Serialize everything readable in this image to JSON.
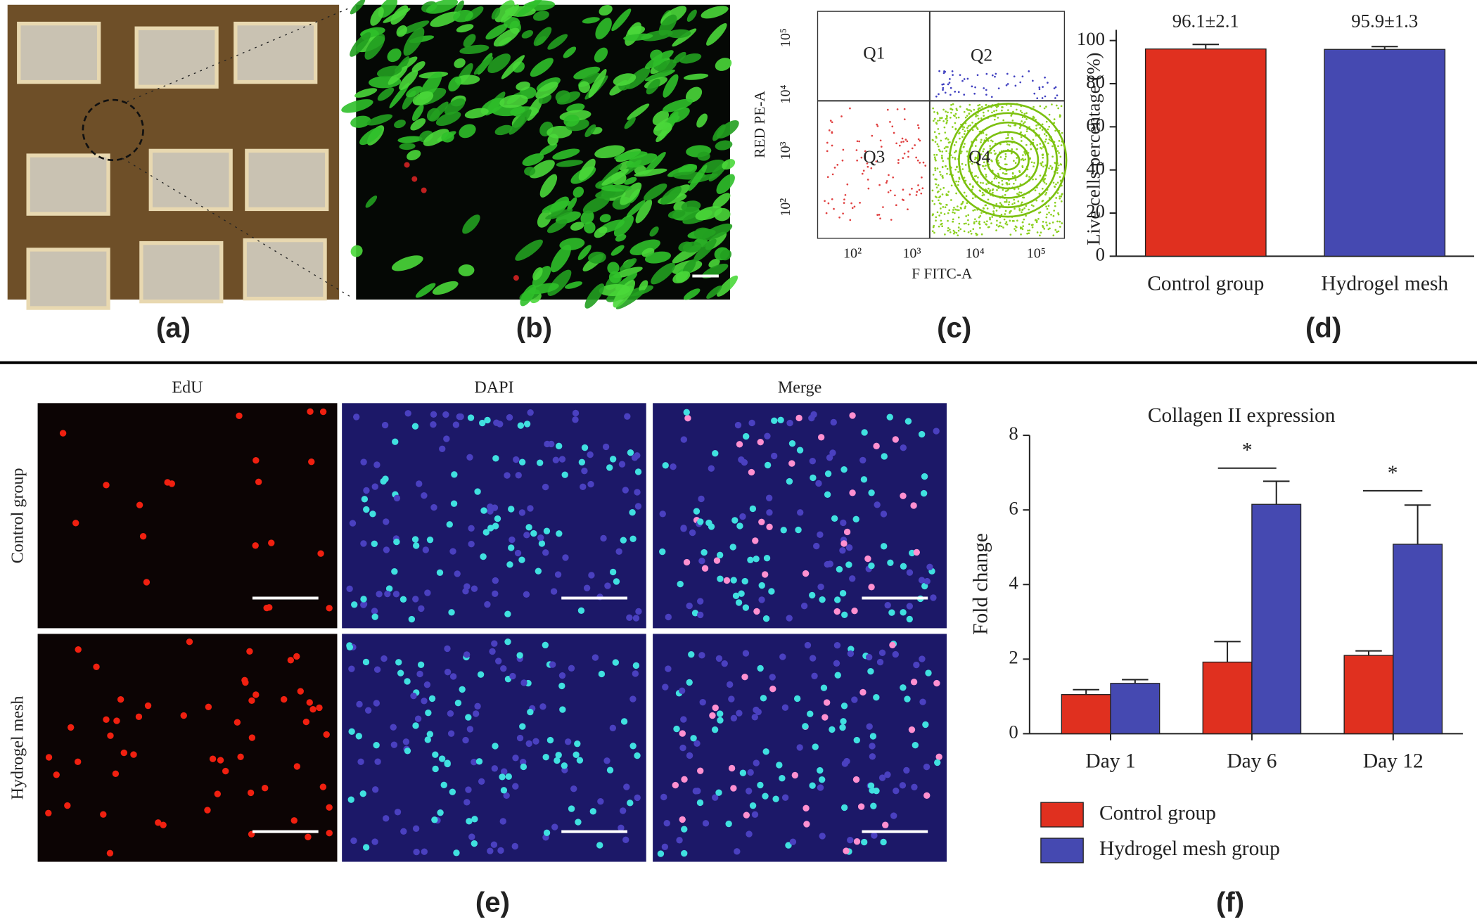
{
  "panel_labels": [
    "(a)",
    "(b)",
    "(c)",
    "(d)",
    "(e)",
    "(f)"
  ],
  "flow_cytometry": {
    "quadrants": [
      "Q1",
      "Q2",
      "Q3",
      "Q4"
    ],
    "xlabel": "F FITC-A",
    "ylabel": "RED PE-A",
    "xticks": [
      "10²",
      "10³",
      "10⁴",
      "10⁵"
    ],
    "yticks": [
      "10⁵",
      "10⁴",
      "10³",
      "10²"
    ]
  },
  "fluorescence": {
    "columns": [
      "EdU",
      "DAPI",
      "Merge"
    ],
    "rows": [
      "Control group",
      "Hydrogel mesh"
    ]
  },
  "chart_data": [
    {
      "type": "bar",
      "ylabel": "Live cells percentage (%)",
      "categories": [
        "Control group",
        "Hydrogel mesh"
      ],
      "values": [
        96.1,
        95.9
      ],
      "errors": [
        2.1,
        1.3
      ],
      "value_labels": [
        "96.1±2.1",
        "95.9±1.3"
      ],
      "colors": [
        "#e0301f",
        "#4549b1"
      ],
      "ylim": [
        0,
        105
      ],
      "yticks": [
        0,
        20,
        40,
        60,
        80,
        100
      ]
    },
    {
      "type": "grouped_bar",
      "title": "Collagen II expression",
      "ylabel": "Fold change",
      "categories": [
        "Day 1",
        "Day 6",
        "Day 12"
      ],
      "series": [
        {
          "name": "Control group",
          "color": "#e0301f",
          "values": [
            1.05,
            1.92,
            2.1
          ],
          "errors": [
            0.13,
            0.55,
            0.12
          ]
        },
        {
          "name": "Hydrogel mesh group",
          "color": "#4549b1",
          "values": [
            1.35,
            6.15,
            5.08
          ],
          "errors": [
            0.1,
            0.62,
            1.05
          ]
        }
      ],
      "ylim": [
        0,
        8
      ],
      "yticks": [
        0,
        2,
        4,
        6,
        8
      ],
      "annotations": [
        "*",
        "*"
      ],
      "legend": "bottom"
    }
  ]
}
